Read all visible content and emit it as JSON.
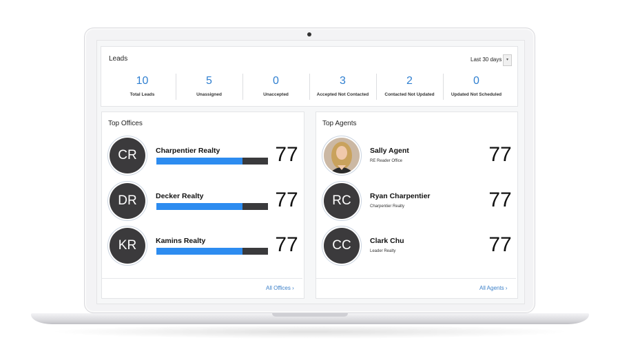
{
  "leads": {
    "title": "Leads",
    "range": "Last 30 days",
    "stats": [
      {
        "value": 10,
        "label": "Total Leads"
      },
      {
        "value": 5,
        "label": "Unassigned"
      },
      {
        "value": 0,
        "label": "Unaccepted"
      },
      {
        "value": 3,
        "label": "Accepted Not Contacted"
      },
      {
        "value": 2,
        "label": "Contacted Not Updated"
      },
      {
        "value": 0,
        "label": "Updated Not Scheduled"
      }
    ]
  },
  "top_offices": {
    "title": "Top Offices",
    "link": "All Offices",
    "items": [
      {
        "initials": "CR",
        "name": "Charpentier Realty",
        "score": 77
      },
      {
        "initials": "DR",
        "name": "Decker Realty",
        "score": 77
      },
      {
        "initials": "KR",
        "name": "Kamins Realty",
        "score": 77
      }
    ]
  },
  "top_agents": {
    "title": "Top Agents",
    "link": "All Agents",
    "items": [
      {
        "name": "Sally Agent",
        "office": "RE Reader Office",
        "score": 77
      },
      {
        "initials": "RC",
        "name": "Ryan Charpentier",
        "office": "Charpentier Realty",
        "score": 77
      },
      {
        "initials": "CC",
        "name": "Clark Chu",
        "office": "Leader Realty",
        "score": 77
      }
    ]
  }
}
